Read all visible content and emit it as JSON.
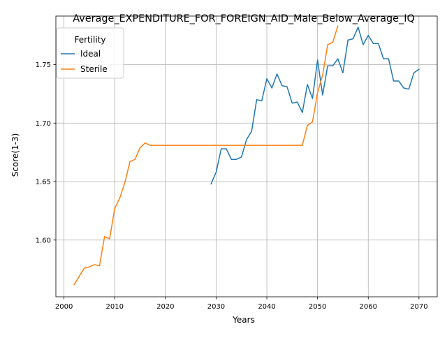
{
  "chart_data": {
    "type": "line",
    "title": "Average_EXPENDITURE_FOR_FOREIGN_AID_Male_Below_Average_IQ",
    "xlabel": "Years",
    "ylabel": "Score(1-3)",
    "xlim": [
      1998.4,
      2073.6
    ],
    "ylim": [
      1.5515,
      1.7915
    ],
    "xticks": [
      2000,
      2010,
      2020,
      2030,
      2040,
      2050,
      2060,
      2070
    ],
    "yticks": [
      1.6,
      1.65,
      1.7,
      1.75
    ],
    "grid": true,
    "legend": {
      "title": "Fertility",
      "position": "top-left"
    },
    "series": [
      {
        "name": "Ideal",
        "color": "#1f77b4",
        "x": [
          2029,
          2030,
          2031,
          2032,
          2033,
          2034,
          2035,
          2036,
          2037,
          2038,
          2039,
          2040,
          2041,
          2042,
          2043,
          2044,
          2045,
          2046,
          2047,
          2048,
          2049,
          2050,
          2051,
          2052,
          2053,
          2054,
          2055,
          2056,
          2057,
          2058,
          2059,
          2060,
          2061,
          2062,
          2063,
          2064,
          2065,
          2066,
          2067,
          2068,
          2069,
          2070
        ],
        "y": [
          1.648,
          1.658,
          1.678,
          1.678,
          1.669,
          1.669,
          1.671,
          1.686,
          1.693,
          1.72,
          1.719,
          1.738,
          1.73,
          1.742,
          1.732,
          1.731,
          1.717,
          1.718,
          1.709,
          1.733,
          1.721,
          1.754,
          1.724,
          1.749,
          1.749,
          1.755,
          1.743,
          1.771,
          1.772,
          1.782,
          1.767,
          1.775,
          1.768,
          1.768,
          1.755,
          1.755,
          1.736,
          1.736,
          1.73,
          1.729,
          1.743,
          1.746
        ]
      },
      {
        "name": "Sterile",
        "color": "#ff7f0e",
        "x": [
          2002,
          2003,
          2004,
          2005,
          2006,
          2007,
          2008,
          2009,
          2010,
          2011,
          2012,
          2013,
          2014,
          2015,
          2016,
          2017,
          2018,
          2019,
          2020,
          2021,
          2022,
          2023,
          2024,
          2025,
          2026,
          2027,
          2028,
          2029,
          2030,
          2031,
          2032,
          2033,
          2034,
          2035,
          2036,
          2037,
          2038,
          2039,
          2040,
          2041,
          2042,
          2043,
          2044,
          2045,
          2046,
          2047,
          2048,
          2049,
          2050,
          2051,
          2052,
          2053,
          2054
        ],
        "y": [
          1.562,
          1.569,
          1.576,
          1.577,
          1.579,
          1.578,
          1.603,
          1.601,
          1.627,
          1.636,
          1.649,
          1.667,
          1.669,
          1.679,
          1.683,
          1.681,
          1.681,
          1.681,
          1.681,
          1.681,
          1.681,
          1.681,
          1.681,
          1.681,
          1.681,
          1.681,
          1.681,
          1.681,
          1.681,
          1.681,
          1.681,
          1.681,
          1.681,
          1.681,
          1.681,
          1.681,
          1.681,
          1.681,
          1.681,
          1.681,
          1.681,
          1.681,
          1.681,
          1.681,
          1.681,
          1.681,
          1.698,
          1.701,
          1.726,
          1.741,
          1.767,
          1.769,
          1.783
        ]
      }
    ]
  }
}
